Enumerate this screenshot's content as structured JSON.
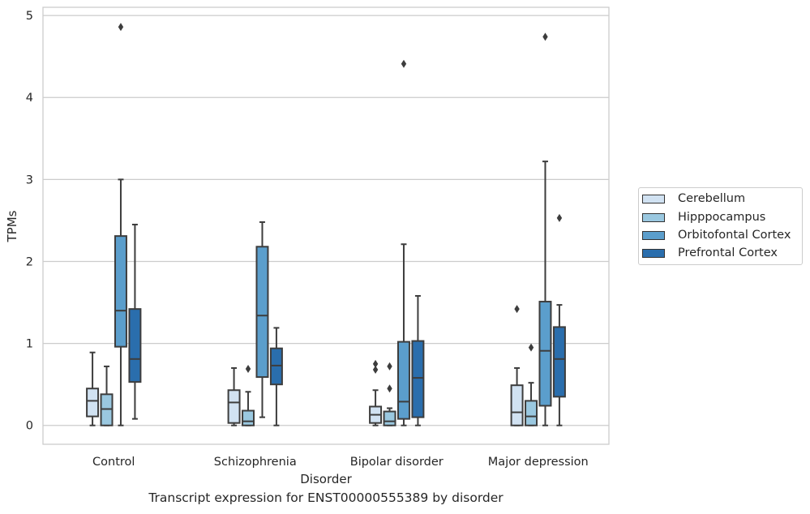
{
  "caption": "Transcript expression for ENST00000555389 by disorder",
  "chart_data": {
    "type": "box",
    "xlabel": "Disorder",
    "ylabel": "TPMs",
    "ylim": [
      -0.23,
      5.1
    ],
    "yticks": [
      0,
      1,
      2,
      3,
      4,
      5
    ],
    "grid": "horizontal",
    "legend_position": "right",
    "categories": [
      "Control",
      "Schizophrenia",
      "Bipolar disorder",
      "Major depression"
    ],
    "series": [
      {
        "name": "Cerebellum",
        "color": "#d1e2f2",
        "boxes": [
          {
            "whisker_low": 0.0,
            "q1": 0.11,
            "median": 0.3,
            "q3": 0.45,
            "whisker_high": 0.89,
            "outliers": []
          },
          {
            "whisker_low": 0.0,
            "q1": 0.03,
            "median": 0.28,
            "q3": 0.43,
            "whisker_high": 0.7,
            "outliers": []
          },
          {
            "whisker_low": 0.0,
            "q1": 0.03,
            "median": 0.13,
            "q3": 0.23,
            "whisker_high": 0.43,
            "outliers": [
              0.68,
              0.75
            ]
          },
          {
            "whisker_low": 0.0,
            "q1": 0.0,
            "median": 0.16,
            "q3": 0.49,
            "whisker_high": 0.7,
            "outliers": [
              1.42
            ]
          }
        ]
      },
      {
        "name": "Hipppocampus",
        "color": "#9ac8e0",
        "boxes": [
          {
            "whisker_low": 0.0,
            "q1": 0.0,
            "median": 0.2,
            "q3": 0.38,
            "whisker_high": 0.72,
            "outliers": []
          },
          {
            "whisker_low": 0.0,
            "q1": 0.0,
            "median": 0.05,
            "q3": 0.18,
            "whisker_high": 0.41,
            "outliers": [
              0.69
            ]
          },
          {
            "whisker_low": 0.0,
            "q1": 0.0,
            "median": 0.05,
            "q3": 0.17,
            "whisker_high": 0.21,
            "outliers": [
              0.45,
              0.72
            ]
          },
          {
            "whisker_low": 0.0,
            "q1": 0.0,
            "median": 0.11,
            "q3": 0.3,
            "whisker_high": 0.52,
            "outliers": [
              0.95
            ]
          }
        ]
      },
      {
        "name": "Orbitofontal Cortex",
        "color": "#5b9ecc",
        "boxes": [
          {
            "whisker_low": 0.0,
            "q1": 0.96,
            "median": 1.4,
            "q3": 2.31,
            "whisker_high": 3.0,
            "outliers": [
              4.86
            ]
          },
          {
            "whisker_low": 0.1,
            "q1": 0.59,
            "median": 1.34,
            "q3": 2.18,
            "whisker_high": 2.48,
            "outliers": []
          },
          {
            "whisker_low": 0.0,
            "q1": 0.08,
            "median": 0.29,
            "q3": 1.02,
            "whisker_high": 2.21,
            "outliers": [
              4.41
            ]
          },
          {
            "whisker_low": 0.0,
            "q1": 0.24,
            "median": 0.91,
            "q3": 1.51,
            "whisker_high": 3.22,
            "outliers": [
              4.74
            ]
          }
        ]
      },
      {
        "name": "Prefrontal Cortex",
        "color": "#2a6ead",
        "boxes": [
          {
            "whisker_low": 0.08,
            "q1": 0.53,
            "median": 0.81,
            "q3": 1.42,
            "whisker_high": 2.45,
            "outliers": []
          },
          {
            "whisker_low": 0.0,
            "q1": 0.5,
            "median": 0.73,
            "q3": 0.94,
            "whisker_high": 1.19,
            "outliers": []
          },
          {
            "whisker_low": 0.0,
            "q1": 0.1,
            "median": 0.58,
            "q3": 1.03,
            "whisker_high": 1.58,
            "outliers": []
          },
          {
            "whisker_low": 0.0,
            "q1": 0.35,
            "median": 0.81,
            "q3": 1.2,
            "whisker_high": 1.47,
            "outliers": [
              2.53
            ]
          }
        ]
      }
    ]
  }
}
